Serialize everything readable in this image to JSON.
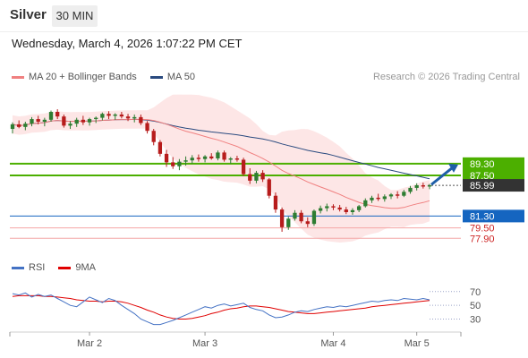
{
  "header": {
    "instrument": "Silver",
    "timeframe": "30 MIN",
    "datetime": "Wednesday, March 4, 2026 1:07:22 PM CET"
  },
  "legend": {
    "ma20": "MA 20 + Bollinger Bands",
    "ma50": "MA 50",
    "credit": "Research © 2026 Trading Central"
  },
  "rsi_legend": {
    "rsi": "RSI",
    "ma": "9MA"
  },
  "colors": {
    "up": "#2e7d32",
    "down": "#b71c1c",
    "ma20": "#f08080",
    "ma50": "#2a4a7f",
    "bollinger": "#fde2e2",
    "green_level": "#4caf00",
    "blue_level": "#1565c0",
    "red_level": "#f4a6a6",
    "rsi": "#4472c4",
    "rsi_ma": "#e00000",
    "arrow": "#1f5fa8"
  },
  "chart_data": [
    {
      "type": "candlestick",
      "ylim": [
        76.3,
        101.3
      ],
      "xlabels": [
        "Mar 2",
        "Mar 3",
        "Mar 4",
        "Mar 5"
      ],
      "levels": [
        {
          "value": "89.30",
          "kind": "resistance"
        },
        {
          "value": "87.50",
          "kind": "resistance"
        },
        {
          "value": "85.99",
          "kind": "last"
        },
        {
          "value": "81.30",
          "kind": "pivot"
        },
        {
          "value": "79.50",
          "kind": "support"
        },
        {
          "value": "77.90",
          "kind": "support"
        }
      ],
      "forecast": {
        "direction": "up",
        "from": 86.1,
        "to": 89.3
      },
      "candles": [
        [
          94.6,
          95.6,
          93.9,
          95.3
        ],
        [
          95.3,
          95.9,
          94.7,
          94.9
        ],
        [
          94.9,
          95.7,
          94.4,
          95.4
        ],
        [
          95.4,
          96.4,
          95.0,
          96.1
        ],
        [
          96.1,
          96.6,
          95.3,
          95.7
        ],
        [
          95.7,
          96.3,
          95.0,
          96.0
        ],
        [
          96.0,
          97.4,
          95.7,
          97.2
        ],
        [
          97.2,
          97.6,
          96.1,
          96.5
        ],
        [
          96.5,
          96.8,
          94.8,
          95.1
        ],
        [
          95.1,
          95.8,
          94.6,
          95.4
        ],
        [
          95.4,
          96.3,
          94.9,
          96.0
        ],
        [
          96.0,
          96.6,
          95.2,
          95.6
        ],
        [
          95.6,
          96.3,
          95.1,
          96.1
        ],
        [
          96.1,
          96.5,
          95.5,
          96.3
        ],
        [
          96.3,
          97.1,
          95.9,
          96.9
        ],
        [
          96.9,
          97.3,
          96.1,
          96.6
        ],
        [
          96.6,
          97.0,
          96.0,
          96.8
        ],
        [
          96.8,
          97.2,
          96.2,
          96.5
        ],
        [
          96.5,
          96.9,
          95.8,
          96.2
        ],
        [
          96.2,
          96.8,
          95.6,
          96.4
        ],
        [
          96.4,
          96.8,
          95.2,
          95.5
        ],
        [
          95.5,
          95.8,
          93.9,
          94.3
        ],
        [
          94.3,
          94.6,
          92.1,
          92.6
        ],
        [
          92.6,
          92.9,
          90.4,
          90.8
        ],
        [
          90.8,
          91.4,
          88.8,
          89.5
        ],
        [
          89.5,
          90.3,
          88.5,
          88.9
        ],
        [
          88.9,
          90.0,
          88.3,
          89.6
        ],
        [
          89.6,
          90.4,
          89.0,
          89.8
        ],
        [
          89.8,
          90.6,
          89.3,
          90.2
        ],
        [
          90.2,
          90.7,
          89.6,
          90.0
        ],
        [
          90.0,
          90.6,
          89.5,
          90.4
        ],
        [
          90.4,
          90.9,
          89.9,
          90.1
        ],
        [
          90.1,
          91.3,
          89.8,
          91.0
        ],
        [
          91.0,
          91.3,
          89.6,
          89.9
        ],
        [
          89.9,
          90.3,
          89.3,
          90.1
        ],
        [
          90.1,
          90.5,
          89.6,
          89.9
        ],
        [
          89.9,
          90.2,
          87.4,
          87.7
        ],
        [
          87.7,
          88.6,
          86.2,
          86.7
        ],
        [
          86.7,
          88.2,
          86.3,
          87.9
        ],
        [
          87.9,
          88.3,
          86.5,
          86.9
        ],
        [
          86.9,
          87.1,
          84.0,
          84.4
        ],
        [
          84.4,
          84.9,
          81.8,
          82.3
        ],
        [
          82.3,
          82.6,
          78.9,
          79.6
        ],
        [
          79.6,
          81.2,
          79.2,
          80.9
        ],
        [
          80.9,
          82.2,
          80.6,
          81.8
        ],
        [
          81.8,
          82.2,
          80.2,
          80.5
        ],
        [
          80.5,
          81.1,
          79.6,
          80.1
        ],
        [
          80.1,
          82.3,
          79.8,
          82.1
        ],
        [
          82.1,
          82.9,
          81.7,
          82.5
        ],
        [
          82.5,
          83.2,
          82.0,
          82.8
        ],
        [
          82.8,
          83.1,
          82.2,
          82.6
        ],
        [
          82.6,
          83.0,
          82.0,
          82.3
        ],
        [
          82.3,
          82.7,
          81.6,
          81.9
        ],
        [
          81.9,
          82.5,
          81.5,
          82.2
        ],
        [
          82.2,
          83.0,
          81.9,
          82.8
        ],
        [
          82.8,
          84.0,
          82.6,
          83.7
        ],
        [
          83.7,
          84.4,
          83.3,
          84.1
        ],
        [
          84.1,
          84.7,
          83.6,
          83.9
        ],
        [
          83.9,
          84.6,
          83.5,
          84.3
        ],
        [
          84.3,
          84.8,
          83.9,
          84.6
        ],
        [
          84.6,
          85.1,
          84.0,
          84.4
        ],
        [
          84.4,
          85.3,
          84.2,
          85.0
        ],
        [
          85.0,
          85.9,
          84.7,
          85.6
        ],
        [
          85.6,
          86.3,
          85.2,
          86.0
        ],
        [
          86.0,
          86.4,
          85.5,
          85.8
        ],
        [
          85.8,
          86.2,
          85.4,
          86.0
        ]
      ]
    },
    {
      "type": "line",
      "name": "RSI",
      "ylim": [
        15,
        88
      ],
      "yticks": [
        30,
        50,
        70
      ],
      "series": [
        {
          "name": "RSI",
          "values": [
            67,
            65,
            68,
            62,
            66,
            63,
            65,
            60,
            55,
            50,
            48,
            55,
            62,
            58,
            54,
            60,
            57,
            50,
            44,
            38,
            30,
            26,
            22,
            22,
            25,
            28,
            32,
            36,
            40,
            44,
            48,
            46,
            50,
            52,
            49,
            51,
            53,
            47,
            44,
            42,
            36,
            32,
            33,
            36,
            40,
            42,
            41,
            44,
            46,
            48,
            47,
            49,
            48,
            50,
            52,
            54,
            56,
            55,
            57,
            58,
            57,
            60,
            59,
            58,
            60,
            58
          ]
        },
        {
          "name": "9MA",
          "values": [
            63,
            64,
            64,
            64,
            64,
            63,
            63,
            62,
            61,
            60,
            58,
            57,
            56,
            56,
            55,
            56,
            56,
            55,
            53,
            50,
            47,
            43,
            40,
            36,
            33,
            31,
            30,
            30,
            31,
            33,
            35,
            38,
            40,
            43,
            45,
            46,
            48,
            49,
            49,
            48,
            47,
            45,
            43,
            41,
            40,
            39,
            38,
            38,
            39,
            40,
            41,
            42,
            43,
            44,
            45,
            46,
            48,
            49,
            50,
            51,
            52,
            53,
            54,
            55,
            56,
            57
          ]
        }
      ]
    }
  ]
}
